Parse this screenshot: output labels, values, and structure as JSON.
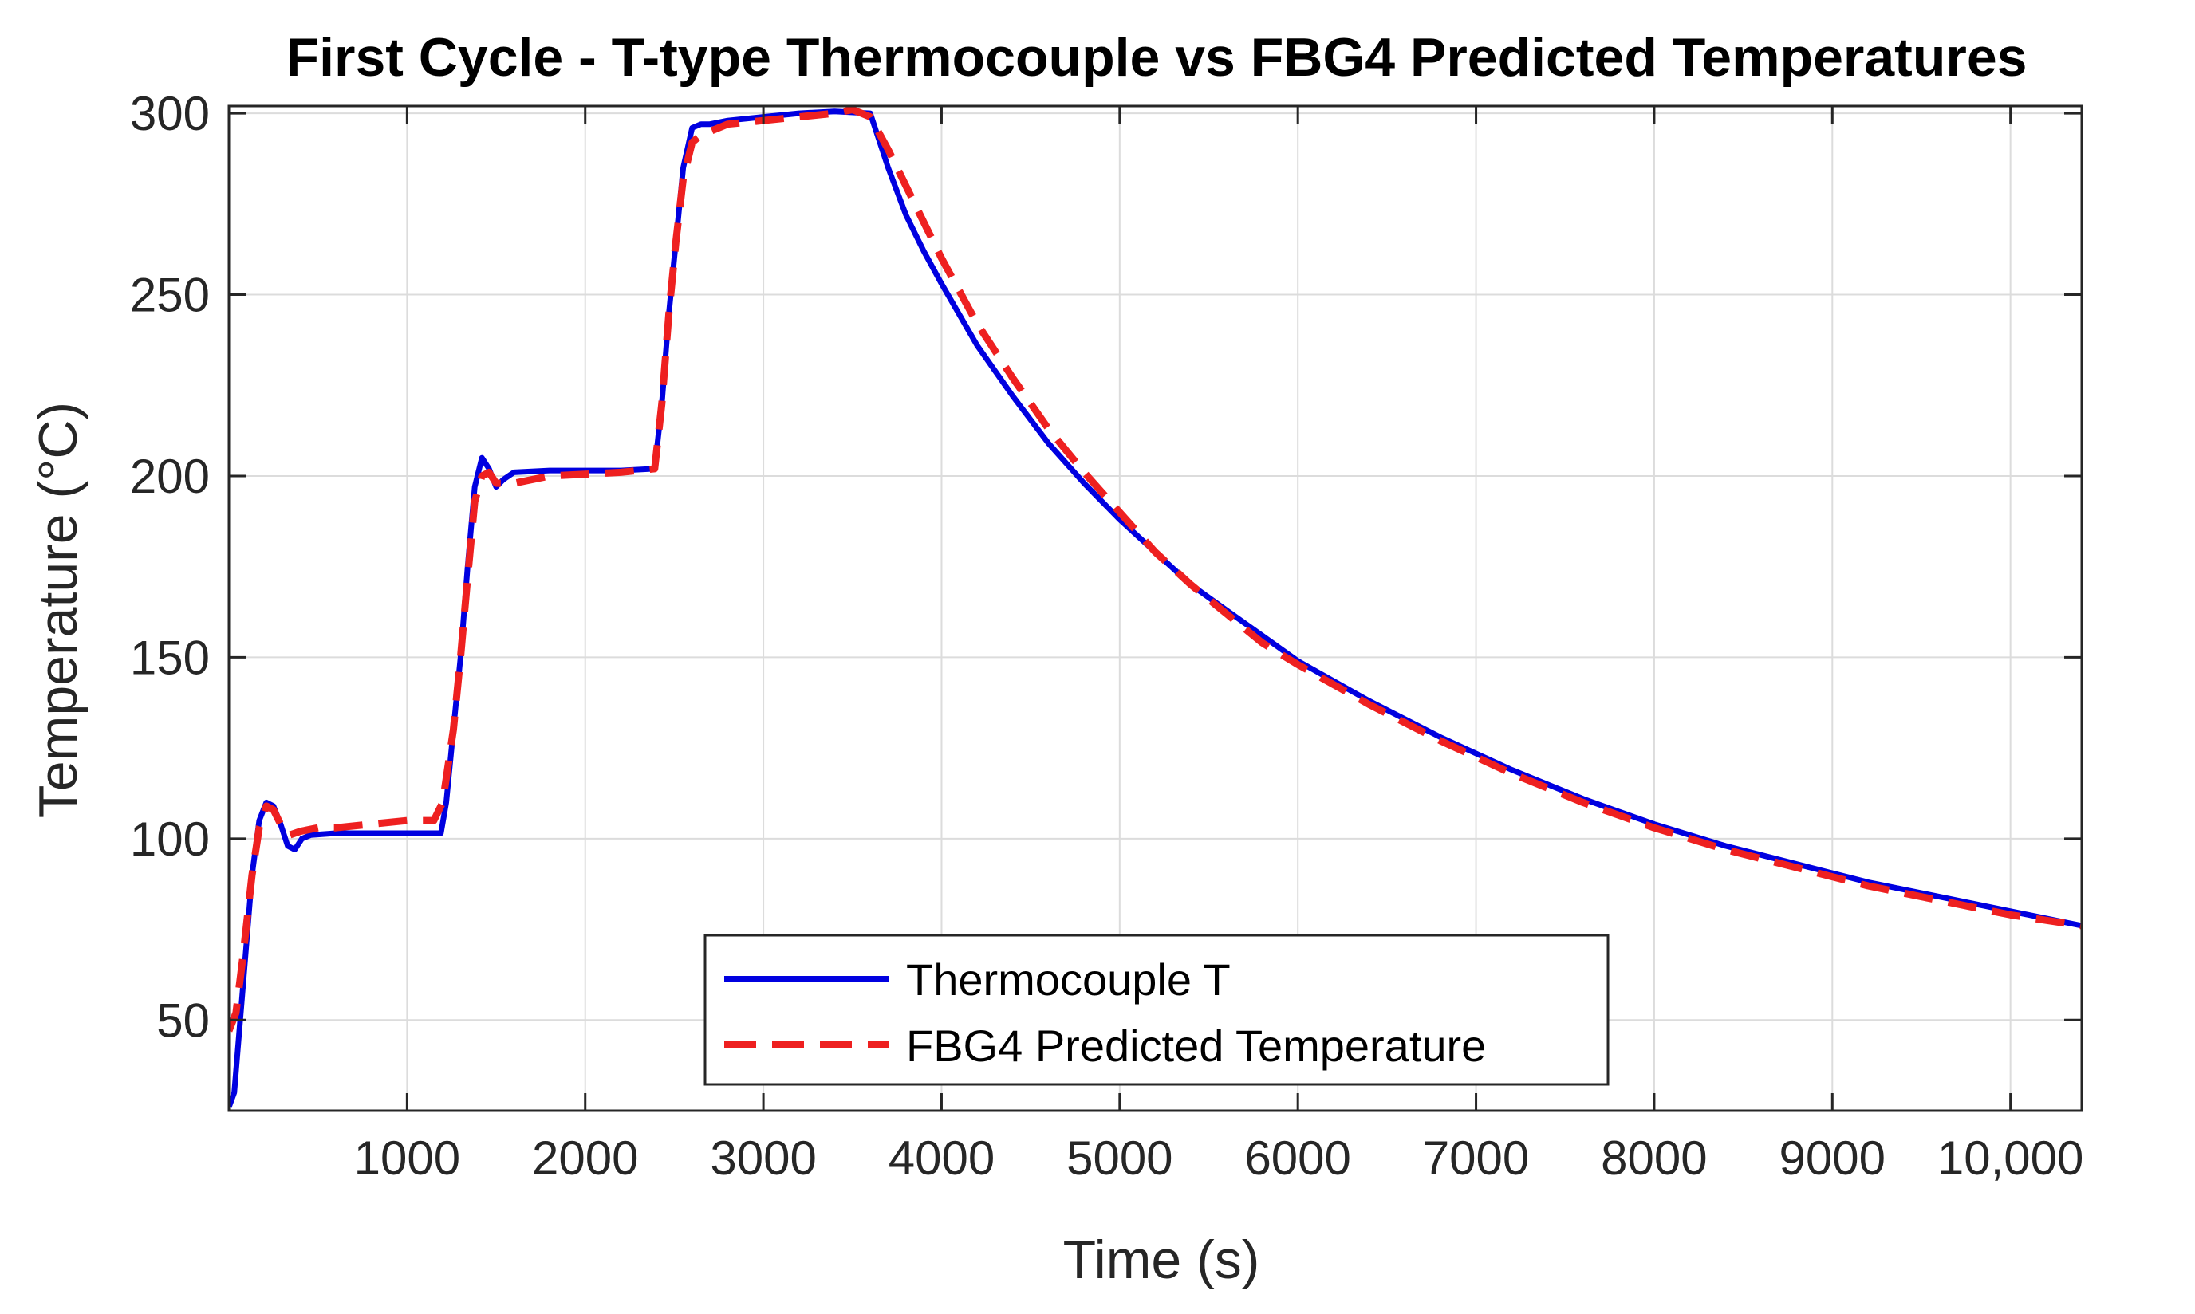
{
  "chart_data": {
    "type": "line",
    "title": "First Cycle - T-type Thermocouple vs FBG4 Predicted Temperatures",
    "xlabel": "Time (s)",
    "ylabel": "Temperature (°C)",
    "xlim": [
      0,
      10400
    ],
    "ylim": [
      25,
      302
    ],
    "x_ticks": [
      1000,
      2000,
      3000,
      4000,
      5000,
      6000,
      7000,
      8000,
      9000,
      10000
    ],
    "x_tick_labels": [
      "1000",
      "2000",
      "3000",
      "4000",
      "5000",
      "6000",
      "7000",
      "8000",
      "9000",
      "10,000"
    ],
    "y_ticks": [
      50,
      100,
      150,
      200,
      250,
      300
    ],
    "y_tick_labels": [
      "50",
      "100",
      "150",
      "200",
      "250",
      "300"
    ],
    "grid": true,
    "legend_position": "bottom-center",
    "series": [
      {
        "name": "Thermocouple T",
        "color": "#0000e0",
        "style": "solid",
        "points": [
          [
            0,
            26
          ],
          [
            30,
            30
          ],
          [
            80,
            60
          ],
          [
            130,
            90
          ],
          [
            170,
            105
          ],
          [
            210,
            110
          ],
          [
            250,
            109
          ],
          [
            290,
            104
          ],
          [
            330,
            98
          ],
          [
            370,
            97
          ],
          [
            410,
            100
          ],
          [
            460,
            101
          ],
          [
            600,
            101.5
          ],
          [
            800,
            101.5
          ],
          [
            1000,
            101.5
          ],
          [
            1190,
            101.5
          ],
          [
            1220,
            110
          ],
          [
            1260,
            130
          ],
          [
            1300,
            150
          ],
          [
            1340,
            175
          ],
          [
            1380,
            197
          ],
          [
            1420,
            205
          ],
          [
            1460,
            202
          ],
          [
            1500,
            197
          ],
          [
            1540,
            199
          ],
          [
            1600,
            201
          ],
          [
            1800,
            201.5
          ],
          [
            2000,
            201.5
          ],
          [
            2200,
            201.5
          ],
          [
            2390,
            202
          ],
          [
            2430,
            220
          ],
          [
            2470,
            245
          ],
          [
            2510,
            265
          ],
          [
            2550,
            285
          ],
          [
            2600,
            296
          ],
          [
            2650,
            297
          ],
          [
            2700,
            297
          ],
          [
            2800,
            298
          ],
          [
            3000,
            299
          ],
          [
            3200,
            300
          ],
          [
            3400,
            300.5
          ],
          [
            3600,
            300
          ],
          [
            3700,
            285
          ],
          [
            3800,
            272
          ],
          [
            3900,
            262
          ],
          [
            4000,
            253
          ],
          [
            4200,
            236
          ],
          [
            4400,
            222
          ],
          [
            4600,
            209
          ],
          [
            4800,
            198
          ],
          [
            5000,
            188
          ],
          [
            5200,
            179
          ],
          [
            5400,
            170
          ],
          [
            5600,
            163
          ],
          [
            5800,
            156
          ],
          [
            6000,
            149
          ],
          [
            6400,
            138
          ],
          [
            6800,
            128
          ],
          [
            7200,
            119
          ],
          [
            7600,
            111
          ],
          [
            8000,
            104
          ],
          [
            8400,
            98
          ],
          [
            8800,
            93
          ],
          [
            9200,
            88
          ],
          [
            9600,
            84
          ],
          [
            10000,
            80
          ],
          [
            10400,
            76
          ]
        ]
      },
      {
        "name": "FBG4 Predicted Temperature",
        "color": "#ee2020",
        "style": "dashed",
        "points": [
          [
            0,
            47
          ],
          [
            40,
            52
          ],
          [
            80,
            68
          ],
          [
            130,
            90
          ],
          [
            170,
            103
          ],
          [
            210,
            109
          ],
          [
            250,
            108
          ],
          [
            300,
            103
          ],
          [
            340,
            101
          ],
          [
            400,
            102
          ],
          [
            500,
            103
          ],
          [
            600,
            103
          ],
          [
            800,
            104
          ],
          [
            1000,
            105
          ],
          [
            1150,
            105
          ],
          [
            1200,
            110
          ],
          [
            1260,
            130
          ],
          [
            1300,
            150
          ],
          [
            1340,
            172
          ],
          [
            1380,
            193
          ],
          [
            1420,
            200
          ],
          [
            1460,
            201
          ],
          [
            1500,
            198
          ],
          [
            1600,
            198
          ],
          [
            1800,
            200
          ],
          [
            2000,
            200.5
          ],
          [
            2200,
            201
          ],
          [
            2390,
            202
          ],
          [
            2430,
            220
          ],
          [
            2470,
            245
          ],
          [
            2510,
            265
          ],
          [
            2550,
            282
          ],
          [
            2600,
            292
          ],
          [
            2650,
            294
          ],
          [
            2700,
            295
          ],
          [
            2800,
            297
          ],
          [
            3000,
            298
          ],
          [
            3200,
            299
          ],
          [
            3400,
            300
          ],
          [
            3500,
            301
          ],
          [
            3600,
            299
          ],
          [
            3700,
            290
          ],
          [
            3800,
            280
          ],
          [
            3900,
            270
          ],
          [
            4000,
            260
          ],
          [
            4200,
            242
          ],
          [
            4400,
            227
          ],
          [
            4600,
            213
          ],
          [
            4800,
            201
          ],
          [
            5000,
            190
          ],
          [
            5200,
            179
          ],
          [
            5400,
            170
          ],
          [
            5600,
            162
          ],
          [
            5800,
            154
          ],
          [
            6000,
            148
          ],
          [
            6400,
            137
          ],
          [
            6800,
            127
          ],
          [
            7200,
            118
          ],
          [
            7600,
            110
          ],
          [
            8000,
            103
          ],
          [
            8400,
            97
          ],
          [
            8800,
            92
          ],
          [
            9200,
            87
          ],
          [
            9600,
            83
          ],
          [
            10000,
            79
          ],
          [
            10400,
            76
          ]
        ]
      }
    ]
  }
}
